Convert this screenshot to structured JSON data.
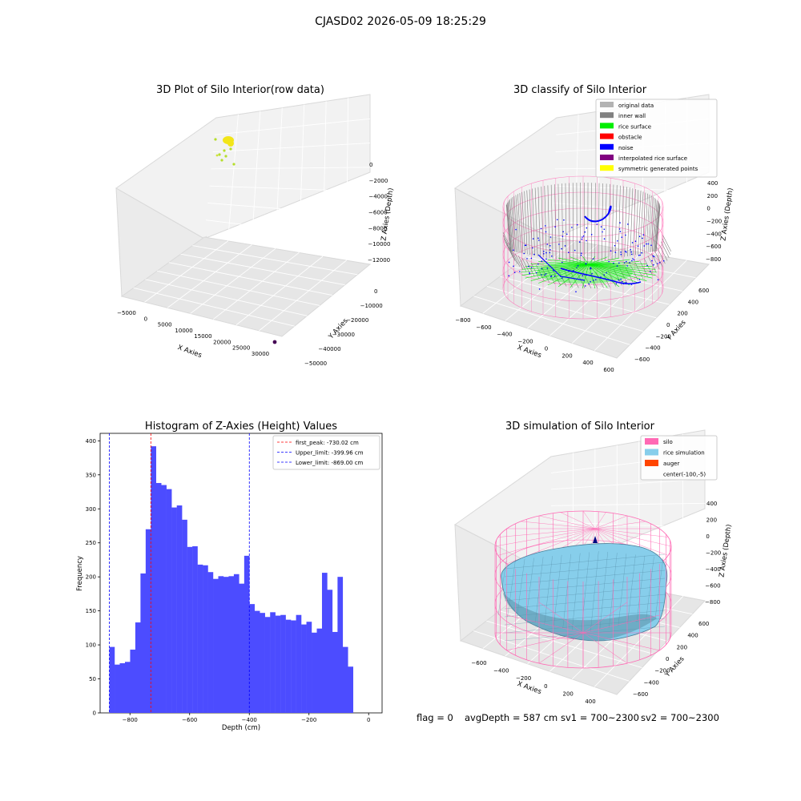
{
  "suptitle": "CJASD02 2026-05-09 18:25:29",
  "raw_plot": {
    "title": "3D Plot of Silo Interior(row data)",
    "xlabel": "X Axies",
    "ylabel": "Y Axies",
    "zlabel": "Z Axies (Depth)",
    "xticks": [
      "−5000",
      "0",
      "5000",
      "10000",
      "15000",
      "20000",
      "25000",
      "30000"
    ],
    "yticks": [
      "−50000",
      "−40000",
      "−30000",
      "−20000",
      "−10000",
      "0"
    ],
    "zticks": [
      "0",
      "−2000",
      "−4000",
      "−6000",
      "−8000",
      "−10000",
      "−12000"
    ],
    "point_colors": {
      "main": "#f2e519",
      "minor": "#b5de2b",
      "outlier": "#440154"
    }
  },
  "classify_plot": {
    "title": "3D classify of Silo Interior",
    "xlabel": "X Axies",
    "ylabel": "Y Axies",
    "zlabel": "Z Axies (Depth)",
    "xticks": [
      "−800",
      "−600",
      "−400",
      "−200",
      "0",
      "200",
      "400",
      "600"
    ],
    "yticks": [
      "−600",
      "−400",
      "−200",
      "0",
      "200",
      "400",
      "600"
    ],
    "zticks": [
      "400",
      "200",
      "0",
      "−200",
      "−400",
      "−600",
      "−800"
    ],
    "legend": [
      {
        "label": "original data",
        "color": "#b3b3b3"
      },
      {
        "label": "inner wall",
        "color": "#808080"
      },
      {
        "label": "rice surface",
        "color": "#00ee00"
      },
      {
        "label": "obstacle",
        "color": "#ff0000"
      },
      {
        "label": "noise",
        "color": "#0000ff"
      },
      {
        "label": "interpolated rice surface",
        "color": "#800080"
      },
      {
        "label": "symmetric generated points",
        "color": "#ffff00"
      }
    ]
  },
  "histogram": {
    "title": "Histogram of Z-Axies (Height) Values",
    "xlabel": "Depth (cm)",
    "ylabel": "Frequency",
    "bar_color": "#4c4cff",
    "xticks": [
      "−800",
      "−600",
      "−400",
      "−200",
      "0"
    ],
    "yticks": [
      "0",
      "50",
      "100",
      "150",
      "200",
      "250",
      "300",
      "350",
      "400"
    ],
    "lines": [
      {
        "label": "first_peak: -730.02 cm",
        "value": -730.02,
        "color": "#ff0000"
      },
      {
        "label": "Upper_limit: -399.96 cm",
        "value": -399.96,
        "color": "#0000ff"
      },
      {
        "label": "Lower_limit: -869.00 cm",
        "value": -869.0,
        "color": "#0000ff"
      }
    ]
  },
  "chart_data": [
    {
      "type": "bar",
      "title": "Histogram of Z-Axies (Height) Values",
      "xlabel": "Depth (cm)",
      "ylabel": "Frequency",
      "xlim": [
        -900,
        45
      ],
      "ylim": [
        0,
        411
      ],
      "bin_start": -869,
      "bin_width": 17.38,
      "values": [
        97,
        71,
        73,
        75,
        93,
        133,
        205,
        270,
        392,
        338,
        335,
        329,
        302,
        305,
        284,
        244,
        245,
        218,
        217,
        207,
        197,
        201,
        200,
        201,
        204,
        190,
        231,
        160,
        150,
        147,
        141,
        148,
        143,
        144,
        137,
        136,
        144,
        130,
        134,
        118,
        124,
        206,
        181,
        119,
        200,
        97,
        68
      ],
      "vlines": [
        -730.02,
        -399.96,
        -869.0
      ]
    }
  ],
  "sim_plot": {
    "title": "3D simulation of Silo Interior",
    "xlabel": "X Axies",
    "ylabel": "Y Axies",
    "zlabel": "Z Axies (Depth)",
    "xticks": [
      "−600",
      "−400",
      "−200",
      "0",
      "200",
      "400"
    ],
    "yticks": [
      "−600",
      "−400",
      "−200",
      "0",
      "200",
      "400",
      "600"
    ],
    "zticks": [
      "400",
      "200",
      "0",
      "−200",
      "−400",
      "−600",
      "−800"
    ],
    "legend": [
      {
        "label": "silo",
        "color": "#ff69b4"
      },
      {
        "label": "rice simulation",
        "color": "#87ceeb"
      },
      {
        "label": "auger",
        "color": "#ff4500"
      },
      {
        "label": "center(-100,-5)",
        "color": ""
      }
    ]
  },
  "footer": {
    "flag": "flag = 0",
    "avg": "avgDepth = 587 cm",
    "sv1": "sv1 = 700~2300",
    "sv2": "sv2 = 700~2300"
  }
}
